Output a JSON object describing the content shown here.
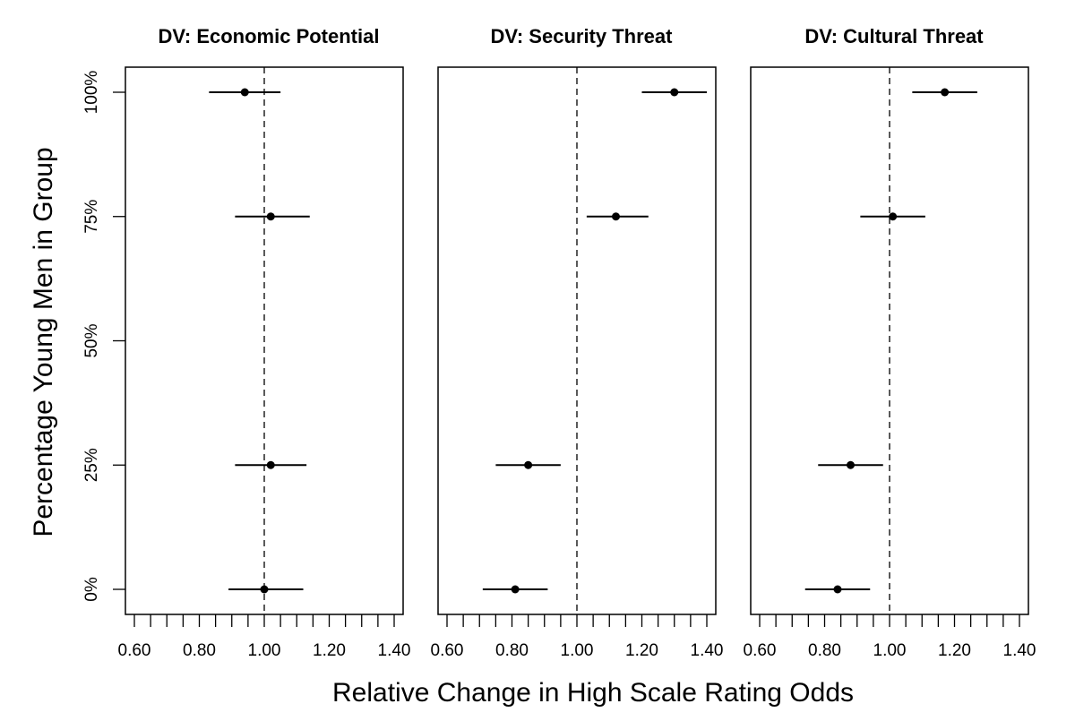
{
  "chart_data": {
    "type": "forest",
    "y_axis": {
      "label": "Percentage Young Men in Group",
      "ticks": [
        0,
        25,
        50,
        75,
        100
      ],
      "tick_labels": [
        "0%",
        "25%",
        "50%",
        "75%",
        "100%"
      ],
      "range": [
        0,
        100
      ]
    },
    "x_axis": {
      "label": "Relative Change in High Scale Rating Odds",
      "range": [
        0.6,
        1.4
      ],
      "major_ticks": [
        0.6,
        0.8,
        1.0,
        1.2,
        1.4
      ],
      "tick_labels": [
        "0.60",
        "0.80",
        "1.00",
        "1.20",
        "1.40"
      ],
      "minor_tick_step": 0.05
    },
    "reference_line": 1.0,
    "panels": [
      {
        "title": "DV: Economic Potential",
        "points": [
          {
            "y": 100,
            "estimate": 0.94,
            "lower": 0.83,
            "upper": 1.05
          },
          {
            "y": 75,
            "estimate": 1.02,
            "lower": 0.91,
            "upper": 1.14
          },
          {
            "y": 25,
            "estimate": 1.02,
            "lower": 0.91,
            "upper": 1.13
          },
          {
            "y": 0,
            "estimate": 1.0,
            "lower": 0.89,
            "upper": 1.12
          }
        ]
      },
      {
        "title": "DV: Security Threat",
        "points": [
          {
            "y": 100,
            "estimate": 1.3,
            "lower": 1.2,
            "upper": 1.4
          },
          {
            "y": 75,
            "estimate": 1.12,
            "lower": 1.03,
            "upper": 1.22
          },
          {
            "y": 25,
            "estimate": 0.85,
            "lower": 0.75,
            "upper": 0.95
          },
          {
            "y": 0,
            "estimate": 0.81,
            "lower": 0.71,
            "upper": 0.91
          }
        ]
      },
      {
        "title": "DV: Cultural Threat",
        "points": [
          {
            "y": 100,
            "estimate": 1.17,
            "lower": 1.07,
            "upper": 1.27
          },
          {
            "y": 75,
            "estimate": 1.01,
            "lower": 0.91,
            "upper": 1.11
          },
          {
            "y": 25,
            "estimate": 0.88,
            "lower": 0.78,
            "upper": 0.98
          },
          {
            "y": 0,
            "estimate": 0.84,
            "lower": 0.74,
            "upper": 0.94
          }
        ]
      }
    ]
  }
}
